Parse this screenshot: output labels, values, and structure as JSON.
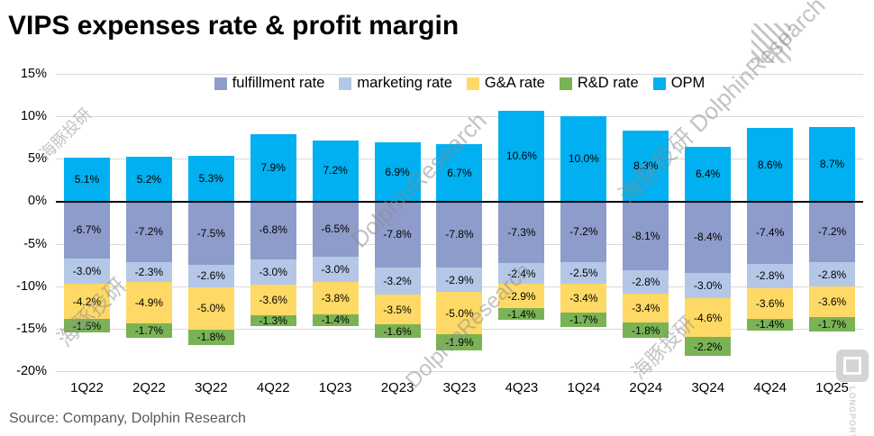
{
  "title": "VIPS expenses rate & profit margin",
  "source": "Source: Company, Dolphin Research",
  "watermarks": {
    "combined": "海豚投研 DolphinResearch",
    "en": "DolphinResearch",
    "cn": "海豚投研",
    "brand": "LONGPORT"
  },
  "chart_data": {
    "type": "bar",
    "stacked": true,
    "title": "VIPS expenses rate & profit margin",
    "categories": [
      "1Q22",
      "2Q22",
      "3Q22",
      "4Q22",
      "1Q23",
      "2Q23",
      "3Q23",
      "4Q23",
      "1Q24",
      "2Q24",
      "3Q24",
      "4Q24",
      "1Q25"
    ],
    "series": [
      {
        "name": "fulfillment rate",
        "color": "#8e9ccb",
        "values": [
          -6.7,
          -7.2,
          -7.5,
          -6.8,
          -6.5,
          -7.8,
          -7.8,
          -7.3,
          -7.2,
          -8.1,
          -8.4,
          -7.4,
          -7.2
        ]
      },
      {
        "name": "marketing rate",
        "color": "#b4c7e7",
        "values": [
          -3.0,
          -2.3,
          -2.6,
          -3.0,
          -3.0,
          -3.2,
          -2.9,
          -2.4,
          -2.5,
          -2.8,
          -3.0,
          -2.8,
          -2.8
        ]
      },
      {
        "name": "G&A rate",
        "color": "#ffd966",
        "values": [
          -4.2,
          -4.9,
          -5.0,
          -3.6,
          -3.8,
          -3.5,
          -5.0,
          -2.9,
          -3.4,
          -3.4,
          -4.6,
          -3.6,
          -3.6
        ]
      },
      {
        "name": "R&D rate",
        "color": "#7ab356",
        "values": [
          -1.5,
          -1.7,
          -1.8,
          -1.3,
          -1.4,
          -1.6,
          -1.9,
          -1.4,
          -1.7,
          -1.8,
          -2.2,
          -1.4,
          -1.7
        ]
      },
      {
        "name": "OPM",
        "color": "#00b0f0",
        "values": [
          5.1,
          5.2,
          5.3,
          7.9,
          7.2,
          6.9,
          6.7,
          10.6,
          10.0,
          8.3,
          6.4,
          8.6,
          8.7
        ]
      }
    ],
    "ylim": [
      -20,
      15
    ],
    "ytick_step": 5,
    "ytick_labels": [
      "15%",
      "10%",
      "5%",
      "0%",
      "-5%",
      "-10%",
      "-15%",
      "-20%"
    ],
    "grid": true,
    "legend_position": "top",
    "value_label_format": "one_decimal_percent"
  }
}
